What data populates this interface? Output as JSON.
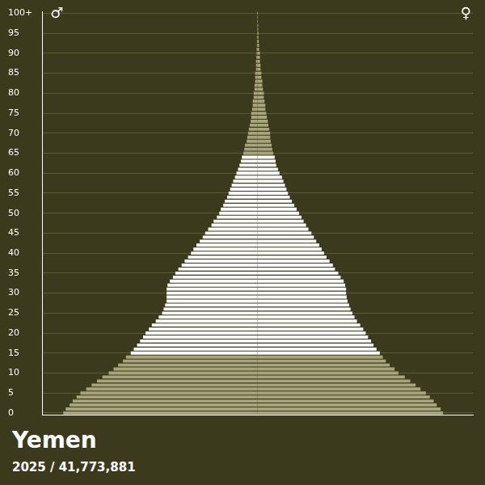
{
  "chart_data": {
    "type": "bar",
    "orientation": "horizontal",
    "stacked": true,
    "grid": true,
    "tick_labels": "y",
    "title": "Yemen",
    "subtitle": "2025 / 41,773,881",
    "xlim": [
      -715,
      715
    ],
    "categories": [
      "0",
      null,
      null,
      null,
      null,
      "5",
      null,
      null,
      null,
      null,
      "10",
      null,
      null,
      null,
      null,
      "15",
      null,
      null,
      null,
      null,
      "20",
      null,
      null,
      null,
      null,
      "25",
      null,
      null,
      null,
      null,
      "30",
      null,
      null,
      null,
      null,
      "35",
      null,
      null,
      null,
      null,
      "40",
      null,
      null,
      null,
      null,
      "45",
      null,
      null,
      null,
      null,
      "50",
      null,
      null,
      null,
      null,
      "55",
      null,
      null,
      null,
      null,
      "60",
      null,
      null,
      null,
      null,
      "65",
      null,
      null,
      null,
      null,
      "70",
      null,
      null,
      null,
      null,
      "75",
      null,
      null,
      null,
      null,
      "80",
      null,
      null,
      null,
      null,
      "85",
      null,
      null,
      null,
      null,
      "90",
      null,
      null,
      null,
      null,
      "95",
      null,
      null,
      null,
      null,
      "100+"
    ],
    "series": [
      {
        "name": "♂",
        "values": [
          -645,
          -637,
          -624,
          -614,
          -601,
          -588,
          -569,
          -551,
          -533,
          -515,
          -494,
          -478,
          -463,
          -447,
          -437,
          -421,
          -411,
          -400,
          -390,
          -380,
          -372,
          -361,
          -351,
          -338,
          -328,
          -317,
          -312,
          -307,
          -302,
          -302,
          -302,
          -302,
          -299,
          -291,
          -281,
          -273,
          -263,
          -252,
          -242,
          -231,
          -221,
          -213,
          -203,
          -192,
          -182,
          -174,
          -164,
          -153,
          -146,
          -135,
          -127,
          -122,
          -114,
          -109,
          -101,
          -96,
          -91,
          -86,
          -81,
          -75,
          -70,
          -65,
          -60,
          -55,
          -52,
          -47,
          -44,
          -42,
          -36,
          -34,
          -31,
          -29,
          -26,
          -23,
          -21,
          -21,
          -18,
          -16,
          -16,
          -13,
          -13,
          -10,
          -10,
          -8,
          -8,
          -8,
          -5,
          -5,
          -5,
          -4,
          -3,
          -3,
          -2,
          -2,
          -2,
          -1,
          -1,
          -1,
          -1,
          -1,
          -1
        ],
        "colors": [
          "#a8a57c",
          "#a8a57c",
          "#a8a57c",
          "#a8a57c",
          "#a8a57c",
          "#a8a57c",
          "#a8a57c",
          "#a8a57c",
          "#a8a57c",
          "#a8a57c",
          "#a8a57c",
          "#a8a57c",
          "#a8a57c",
          "#a8a57c",
          "#a8a57c",
          "#ffffff",
          "#ffffff",
          "#ffffff",
          "#ffffff",
          "#ffffff",
          "#ffffff",
          "#ffffff",
          "#ffffff",
          "#ffffff",
          "#ffffff",
          "#ffffff",
          "#ffffff",
          "#ffffff",
          "#ffffff",
          "#ffffff",
          "#ffffff",
          "#ffffff",
          "#ffffff",
          "#ffffff",
          "#ffffff",
          "#ffffff",
          "#ffffff",
          "#ffffff",
          "#ffffff",
          "#ffffff",
          "#ffffff",
          "#ffffff",
          "#ffffff",
          "#ffffff",
          "#ffffff",
          "#ffffff",
          "#ffffff",
          "#ffffff",
          "#ffffff",
          "#ffffff",
          "#ffffff",
          "#ffffff",
          "#ffffff",
          "#ffffff",
          "#ffffff",
          "#ffffff",
          "#ffffff",
          "#ffffff",
          "#ffffff",
          "#ffffff",
          "#ffffff",
          "#ffffff",
          "#ffffff",
          "#ffffff",
          "#ffffff",
          "#a8a57c",
          "#a8a57c",
          "#a8a57c",
          "#a8a57c",
          "#a8a57c",
          "#a8a57c",
          "#a8a57c",
          "#a8a57c",
          "#a8a57c",
          "#a8a57c",
          "#a8a57c",
          "#a8a57c",
          "#a8a57c",
          "#a8a57c",
          "#a8a57c",
          "#a8a57c",
          "#a8a57c",
          "#a8a57c",
          "#a8a57c",
          "#a8a57c",
          "#a8a57c",
          "#a8a57c",
          "#a8a57c",
          "#a8a57c",
          "#a8a57c",
          "#a8a57c",
          "#a8a57c",
          "#a8a57c",
          "#a8a57c",
          "#a8a57c",
          "#a8a57c",
          "#a8a57c",
          "#a8a57c",
          "#a8a57c",
          "#a8a57c",
          "#a8a57c"
        ]
      },
      {
        "name": "♀",
        "values": [
          616,
          608,
          595,
          585,
          572,
          559,
          541,
          525,
          507,
          489,
          468,
          455,
          439,
          426,
          416,
          406,
          395,
          385,
          377,
          367,
          359,
          351,
          341,
          330,
          322,
          315,
          309,
          304,
          299,
          296,
          294,
          294,
          291,
          286,
          276,
          268,
          257,
          250,
          239,
          229,
          221,
          213,
          205,
          195,
          187,
          179,
          169,
          161,
          153,
          146,
          138,
          130,
          122,
          114,
          107,
          101,
          96,
          91,
          86,
          81,
          73,
          68,
          62,
          60,
          57,
          52,
          49,
          47,
          44,
          42,
          42,
          39,
          36,
          34,
          31,
          29,
          26,
          26,
          23,
          21,
          21,
          18,
          16,
          16,
          13,
          13,
          10,
          10,
          8,
          8,
          8,
          5,
          5,
          4,
          3,
          3,
          2,
          2,
          1,
          1,
          1
        ],
        "colors": [
          "#a8a57c",
          "#a8a57c",
          "#a8a57c",
          "#a8a57c",
          "#a8a57c",
          "#a8a57c",
          "#a8a57c",
          "#a8a57c",
          "#a8a57c",
          "#a8a57c",
          "#a8a57c",
          "#a8a57c",
          "#a8a57c",
          "#a8a57c",
          "#a8a57c",
          "#ffffff",
          "#ffffff",
          "#ffffff",
          "#ffffff",
          "#ffffff",
          "#ffffff",
          "#ffffff",
          "#ffffff",
          "#ffffff",
          "#ffffff",
          "#ffffff",
          "#ffffff",
          "#ffffff",
          "#ffffff",
          "#ffffff",
          "#ffffff",
          "#ffffff",
          "#ffffff",
          "#ffffff",
          "#ffffff",
          "#ffffff",
          "#ffffff",
          "#ffffff",
          "#ffffff",
          "#ffffff",
          "#ffffff",
          "#ffffff",
          "#ffffff",
          "#ffffff",
          "#ffffff",
          "#ffffff",
          "#ffffff",
          "#ffffff",
          "#ffffff",
          "#ffffff",
          "#ffffff",
          "#ffffff",
          "#ffffff",
          "#ffffff",
          "#ffffff",
          "#ffffff",
          "#ffffff",
          "#ffffff",
          "#ffffff",
          "#ffffff",
          "#ffffff",
          "#ffffff",
          "#ffffff",
          "#ffffff",
          "#ffffff",
          "#a8a57c",
          "#a8a57c",
          "#a8a57c",
          "#a8a57c",
          "#a8a57c",
          "#a8a57c",
          "#a8a57c",
          "#a8a57c",
          "#a8a57c",
          "#a8a57c",
          "#a8a57c",
          "#a8a57c",
          "#a8a57c",
          "#a8a57c",
          "#a8a57c",
          "#a8a57c",
          "#a8a57c",
          "#a8a57c",
          "#a8a57c",
          "#a8a57c",
          "#a8a57c",
          "#a8a57c",
          "#a8a57c",
          "#a8a57c",
          "#a8a57c",
          "#a8a57c",
          "#a8a57c",
          "#a8a57c",
          "#a8a57c",
          "#a8a57c",
          "#a8a57c",
          "#a8a57c",
          "#a8a57c",
          "#a8a57c",
          "#a8a57c",
          "#a8a57c"
        ]
      }
    ]
  }
}
